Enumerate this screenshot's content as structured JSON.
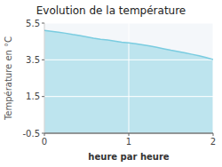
{
  "chart_data": {
    "type": "area",
    "title": "Evolution de la température",
    "x_label": "heure par heure",
    "y_label": "Température en °C",
    "x": [
      0.0,
      0.083,
      0.167,
      0.25,
      0.333,
      0.417,
      0.5,
      0.583,
      0.667,
      0.75,
      0.833,
      0.917,
      1.0,
      1.083,
      1.167,
      1.25,
      1.333,
      1.417,
      1.5,
      1.583,
      1.667,
      1.75,
      1.833,
      1.917,
      2.0
    ],
    "values": [
      5.1,
      5.05,
      5.0,
      4.95,
      4.88,
      4.82,
      4.75,
      4.68,
      4.62,
      4.58,
      4.52,
      4.46,
      4.42,
      4.38,
      4.32,
      4.25,
      4.18,
      4.1,
      4.02,
      3.95,
      3.88,
      3.8,
      3.72,
      3.62,
      3.52
    ],
    "color": "#7acce0",
    "xlim": [
      0,
      2
    ],
    "ylim": [
      -0.5,
      5.5
    ],
    "xticks": [
      0,
      1,
      2
    ],
    "yticks": [
      -0.5,
      1.5,
      3.5,
      5.5
    ],
    "grid": true
  }
}
